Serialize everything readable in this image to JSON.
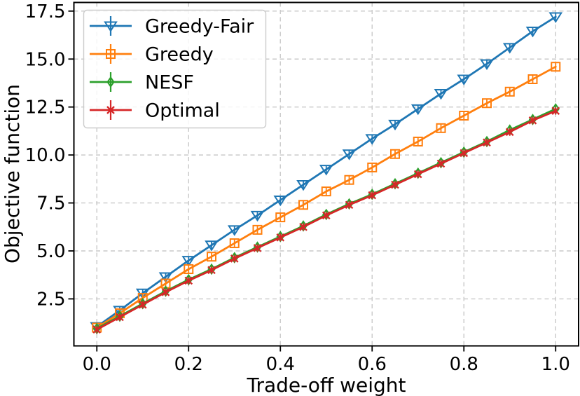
{
  "chart_data": {
    "type": "line",
    "title": "",
    "xlabel": "Trade-off weight",
    "ylabel": "Objective function",
    "x": [
      0.0,
      0.05,
      0.1,
      0.15,
      0.2,
      0.25,
      0.3,
      0.35,
      0.4,
      0.45,
      0.5,
      0.55,
      0.6,
      0.65,
      0.7,
      0.75,
      0.8,
      0.85,
      0.9,
      0.95,
      1.0
    ],
    "series": [
      {
        "name": "Greedy-Fair",
        "color": "#1f77b4",
        "marker": "triangle-down",
        "values": [
          1.05,
          1.9,
          2.8,
          3.65,
          4.5,
          5.3,
          6.1,
          6.85,
          7.65,
          8.45,
          9.25,
          10.05,
          10.85,
          11.6,
          12.4,
          13.2,
          13.95,
          14.75,
          15.6,
          16.45,
          17.2
        ]
      },
      {
        "name": "Greedy",
        "color": "#ff7f0e",
        "marker": "square",
        "values": [
          1.0,
          1.75,
          2.55,
          3.3,
          4.05,
          4.7,
          5.4,
          6.1,
          6.75,
          7.4,
          8.1,
          8.7,
          9.35,
          10.05,
          10.7,
          11.4,
          12.05,
          12.7,
          13.3,
          13.95,
          14.6
        ]
      },
      {
        "name": "NESF",
        "color": "#2ca02c",
        "marker": "thin-diamond",
        "values": [
          0.95,
          1.6,
          2.25,
          2.9,
          3.5,
          4.05,
          4.65,
          5.2,
          5.75,
          6.3,
          6.9,
          7.45,
          7.95,
          8.5,
          9.05,
          9.6,
          10.15,
          10.7,
          11.3,
          11.85,
          12.4
        ]
      },
      {
        "name": "Optimal",
        "color": "#d62728",
        "marker": "x",
        "values": [
          0.9,
          1.55,
          2.2,
          2.85,
          3.45,
          4.0,
          4.6,
          5.15,
          5.7,
          6.25,
          6.85,
          7.4,
          7.9,
          8.45,
          9.0,
          9.55,
          10.1,
          10.65,
          11.2,
          11.8,
          12.3
        ]
      }
    ],
    "xticks": [
      0.0,
      0.2,
      0.4,
      0.6,
      0.8,
      1.0
    ],
    "xtick_labels": [
      "0.0",
      "0.2",
      "0.4",
      "0.6",
      "0.8",
      "1.0"
    ],
    "yticks": [
      2.5,
      5.0,
      7.5,
      10.0,
      12.5,
      15.0,
      17.5
    ],
    "ytick_labels": [
      "2.5",
      "5.0",
      "7.5",
      "10.0",
      "12.5",
      "15.0",
      "17.5"
    ],
    "xlim": [
      -0.05,
      1.05
    ],
    "ylim": [
      0.05,
      17.95
    ],
    "grid": true,
    "grid_style": "dashed",
    "grid_color": "#c9c9c9",
    "spine_color": "#000000",
    "background_color": "#ffffff",
    "legend_position": "upper left",
    "legend_entries": [
      "Greedy-Fair",
      "Greedy",
      "NESF",
      "Optimal"
    ],
    "has_error_bars": true
  }
}
